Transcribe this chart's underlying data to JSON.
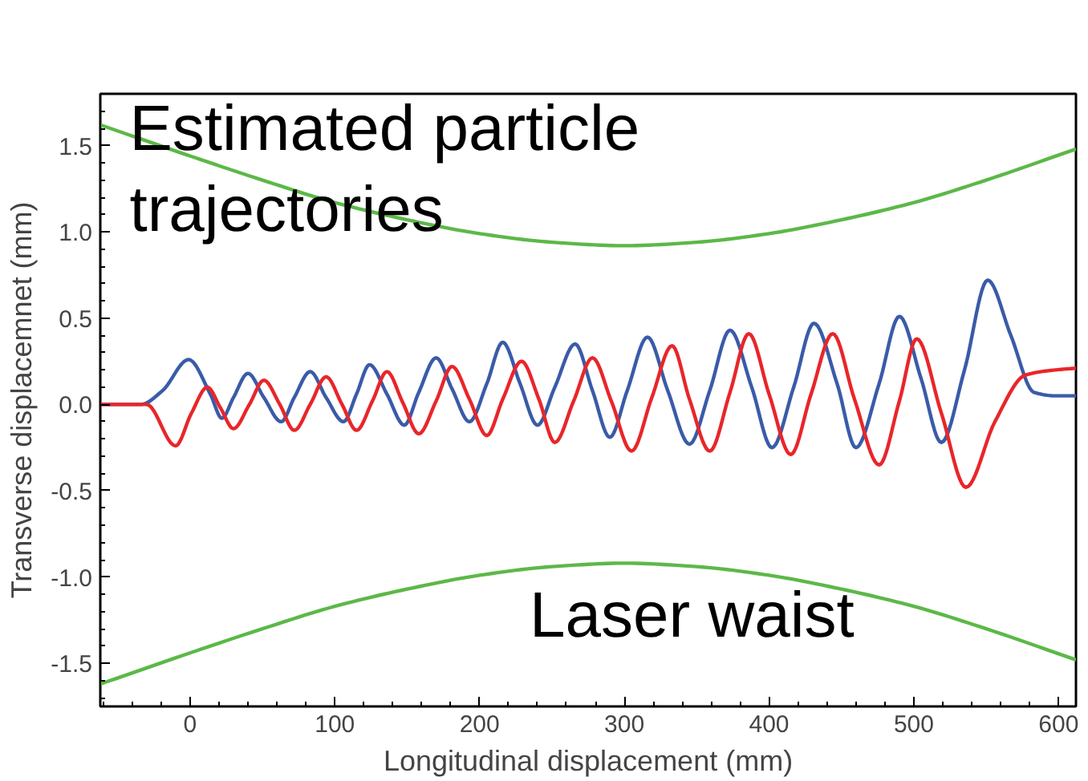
{
  "chart_data": {
    "type": "line",
    "xlabel": "Longitudinal displacement (mm)",
    "ylabel": "Transverse displacemnet (mm)",
    "xlim": [
      -62,
      612
    ],
    "ylim": [
      -1.75,
      1.8
    ],
    "xticks": [
      0,
      100,
      200,
      300,
      400,
      500,
      600
    ],
    "yticks": [
      {
        "value": -1.5,
        "label": "-1.5"
      },
      {
        "value": -1.0,
        "label": "-1.0"
      },
      {
        "value": -0.5,
        "label": "-0.5"
      },
      {
        "value": 0,
        "label": "0.0"
      },
      {
        "value": 0.5,
        "label": "0.5"
      },
      {
        "value": 1.0,
        "label": "1.0"
      },
      {
        "value": 1.5,
        "label": "1.5"
      }
    ],
    "grid": false,
    "marker": "none",
    "line_style": "solid",
    "annotations": [
      "Estimated particle\ntrajectories",
      "Laser waist"
    ],
    "series": [
      {
        "color": "#5cb848",
        "x": [
          -62,
          0,
          50,
          100,
          150,
          200,
          250,
          300,
          350,
          400,
          450,
          500,
          550,
          612
        ],
        "values": [
          1.62,
          1.44,
          1.3,
          1.17,
          1.07,
          0.99,
          0.94,
          0.92,
          0.94,
          0.99,
          1.07,
          1.17,
          1.3,
          1.48
        ]
      },
      {
        "color": "#5cb848",
        "x": [
          -62,
          0,
          50,
          100,
          150,
          200,
          250,
          300,
          350,
          400,
          450,
          500,
          550,
          612
        ],
        "values": [
          -1.62,
          -1.44,
          -1.3,
          -1.17,
          -1.07,
          -0.99,
          -0.94,
          -0.92,
          -0.94,
          -0.99,
          -1.07,
          -1.17,
          -1.3,
          -1.48
        ]
      },
      {
        "color": "#3a5ba8",
        "x": [
          -62,
          -34,
          -19,
          -1,
          14,
          22,
          30,
          40,
          51,
          63,
          72,
          83,
          94,
          106,
          115,
          124,
          136,
          148,
          158,
          170,
          181,
          193,
          205,
          216,
          228,
          240,
          252,
          266,
          278,
          290,
          302,
          316,
          330,
          345,
          359,
          373,
          388,
          402,
          417,
          431,
          447,
          460,
          476,
          490,
          505,
          519,
          535,
          551,
          567,
          583,
          598,
          612
        ],
        "values": [
          0,
          0,
          0.08,
          0.26,
          0.06,
          -0.08,
          0.04,
          0.18,
          0.04,
          -0.1,
          0.04,
          0.19,
          0.04,
          -0.1,
          0.06,
          0.23,
          0.06,
          -0.12,
          0.07,
          0.27,
          0.09,
          -0.1,
          0.12,
          0.36,
          0.12,
          -0.12,
          0.1,
          0.35,
          0.08,
          -0.19,
          0.08,
          0.39,
          0.08,
          -0.23,
          0.08,
          0.43,
          0.1,
          -0.25,
          0.1,
          0.47,
          0.12,
          -0.25,
          0.12,
          0.51,
          0.15,
          -0.22,
          0.2,
          0.72,
          0.4,
          0.07,
          0.05,
          0.05
        ]
      },
      {
        "color": "#e8262a",
        "x": [
          -62,
          -30,
          -10,
          1,
          12,
          21,
          30,
          41,
          51,
          62,
          72,
          83,
          94,
          105,
          115,
          126,
          136,
          147,
          158,
          170,
          181,
          193,
          205,
          216,
          229,
          241,
          252,
          265,
          278,
          291,
          305,
          319,
          333,
          345,
          359,
          373,
          386,
          400,
          415,
          429,
          444,
          459,
          476,
          490,
          502,
          519,
          536,
          556,
          577,
          598,
          612
        ],
        "values": [
          0,
          0,
          -0.24,
          -0.05,
          0.1,
          -0.02,
          -0.14,
          0.0,
          0.14,
          0.0,
          -0.15,
          0.0,
          0.16,
          0.0,
          -0.15,
          0.02,
          0.19,
          0.01,
          -0.17,
          0.02,
          0.22,
          0.03,
          -0.18,
          0.03,
          0.25,
          0.03,
          -0.22,
          0.02,
          0.27,
          0.02,
          -0.27,
          0.04,
          0.34,
          0.03,
          -0.27,
          0.07,
          0.41,
          0.06,
          -0.29,
          0.06,
          0.41,
          0.03,
          -0.35,
          0.02,
          0.38,
          -0.05,
          -0.48,
          -0.1,
          0.17,
          0.2,
          0.21
        ]
      }
    ]
  }
}
